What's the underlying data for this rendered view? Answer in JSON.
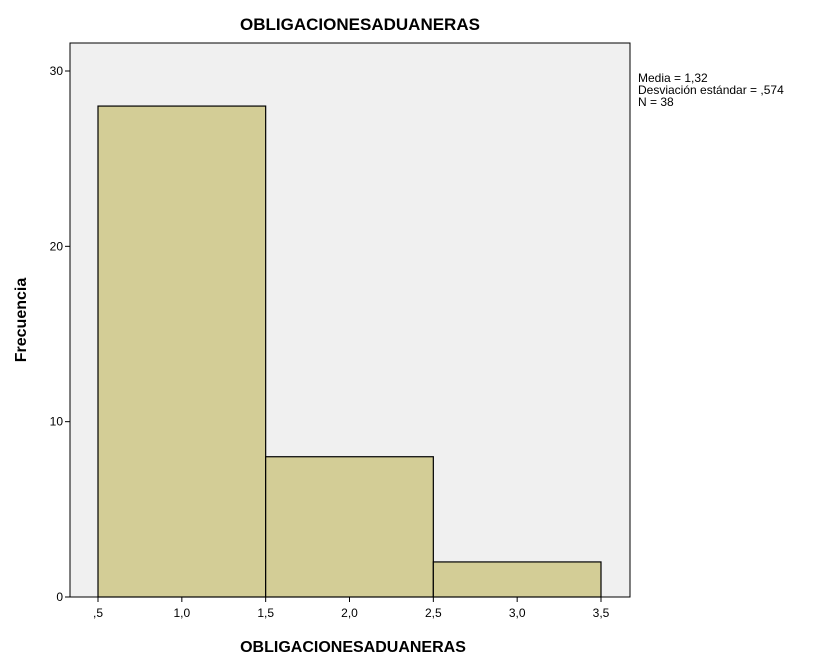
{
  "chart_data": {
    "type": "bar",
    "title": "OBLIGACIONESADUANERAS",
    "xlabel": "OBLIGACIONESADUANERAS",
    "ylabel": "Frecuencia",
    "xlim": [
      0.5,
      3.5
    ],
    "ylim": [
      0,
      30
    ],
    "x_ticks": [
      0.5,
      1.0,
      1.5,
      2.0,
      2.5,
      3.0,
      3.5
    ],
    "x_tick_labels": [
      ",5",
      "1,0",
      "1,5",
      "2,0",
      "2,5",
      "3,0",
      "3,5"
    ],
    "y_ticks": [
      0,
      10,
      20,
      30
    ],
    "y_tick_labels": [
      "0",
      "10",
      "20",
      "30"
    ],
    "bins": [
      {
        "start": 0.5,
        "end": 1.5,
        "value": 28
      },
      {
        "start": 1.5,
        "end": 2.5,
        "value": 8
      },
      {
        "start": 2.5,
        "end": 3.5,
        "value": 2
      }
    ],
    "grid": false,
    "legend_position": "top-right",
    "stats": [
      "Media = 1,32",
      "Desviación estándar = ,574",
      "N = 38"
    ],
    "colors": {
      "bar_fill": "#D3CD96",
      "bar_stroke": "#000000",
      "plot_background": "#F0F0F0",
      "axis": "#000000"
    }
  }
}
